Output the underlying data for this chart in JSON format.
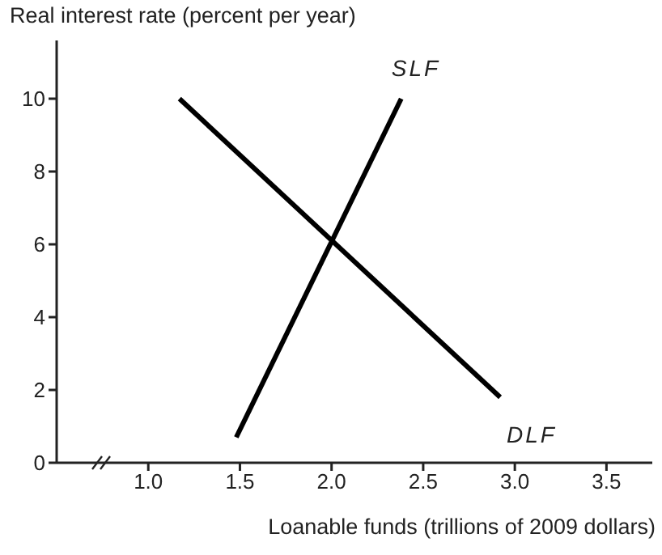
{
  "chart_data": {
    "type": "line",
    "title": "Real interest rate (percent per year)",
    "xlabel": "Loanable funds (trillions of 2009 dollars)",
    "series": [
      {
        "name": "SLF",
        "color": "#000000",
        "x": [
          1.48,
          2.38
        ],
        "values": [
          0.7,
          10
        ]
      },
      {
        "name": "DLF",
        "color": "#000000",
        "x": [
          1.17,
          2.92
        ],
        "values": [
          10,
          1.8
        ]
      }
    ],
    "xlim": [
      0.5,
      3.75
    ],
    "xticks": [
      {
        "value": 1,
        "label": "1.0"
      },
      1.5,
      {
        "value": 2,
        "label": "2.0"
      },
      2.5,
      {
        "value": 3,
        "label": "3.0"
      },
      3.5
    ],
    "ylim": [
      0,
      11.6
    ],
    "yticks": [
      0,
      2,
      4,
      6,
      8,
      10
    ],
    "marker": "none",
    "line_style": "solid"
  }
}
